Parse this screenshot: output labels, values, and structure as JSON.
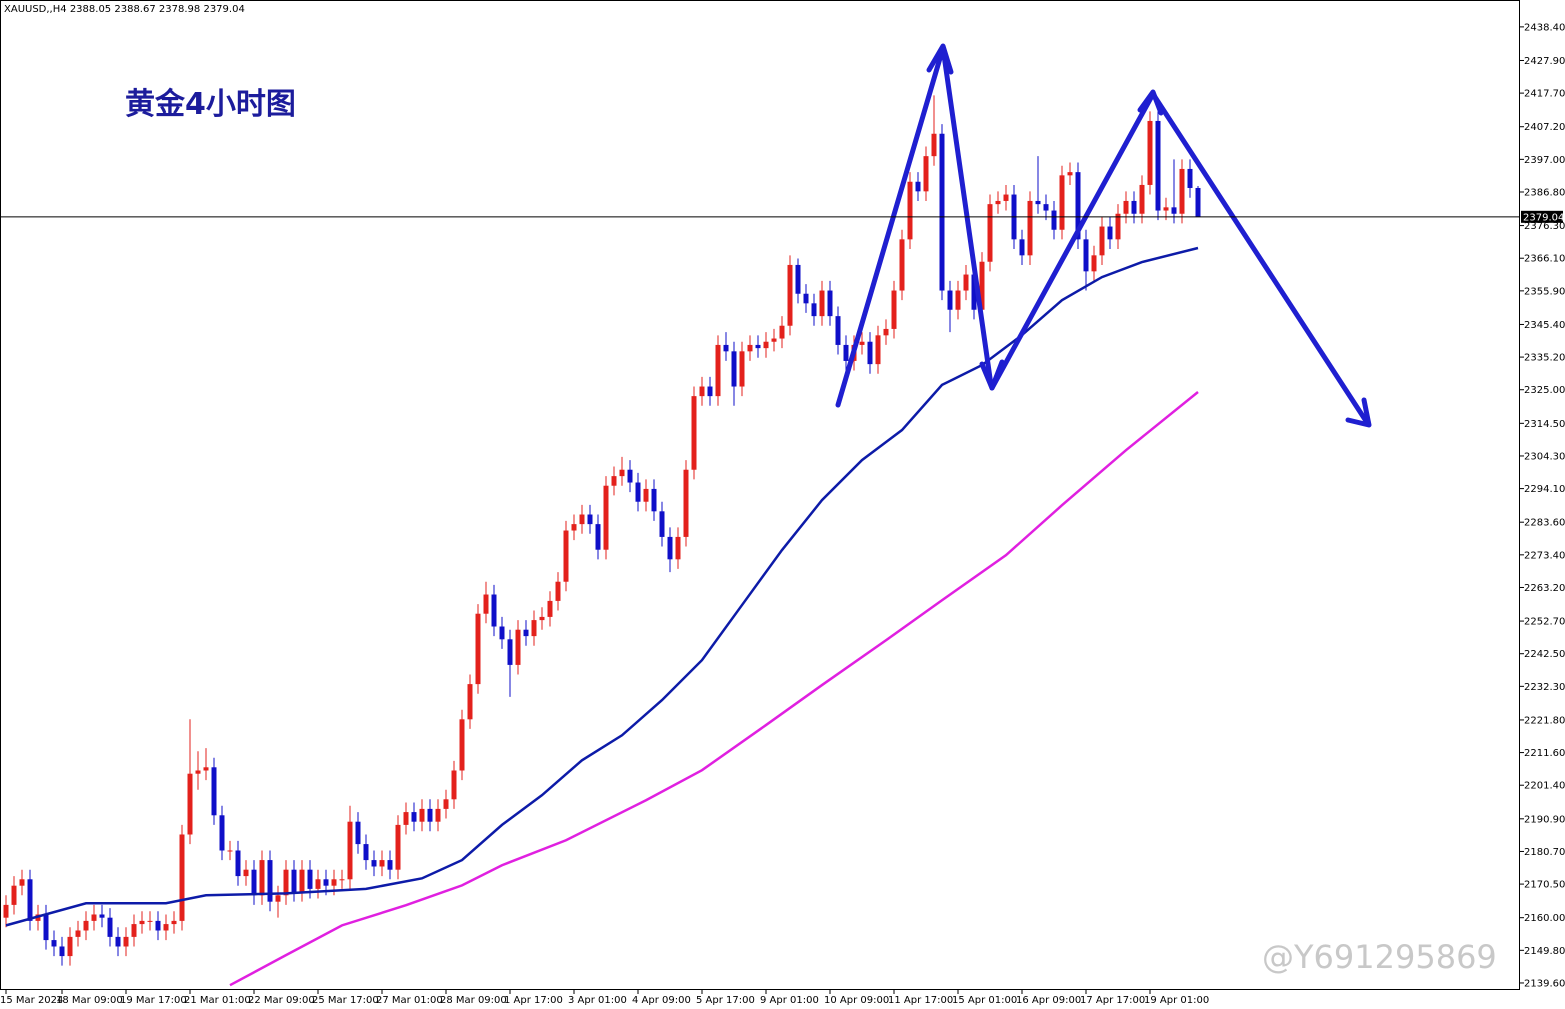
{
  "chart_data": {
    "type": "candlestick",
    "title": "黄金4小时图",
    "symbol": "XAUUSD,,H4",
    "watermark": "@Y691295869",
    "categories": [
      "15 Mar 2024",
      null,
      null,
      null,
      null,
      null,
      null,
      "18 Mar 09:00",
      null,
      null,
      null,
      null,
      null,
      null,
      null,
      "19 Mar 17:00",
      null,
      null,
      null,
      null,
      null,
      null,
      null,
      "21 Mar 01:00",
      null,
      null,
      null,
      null,
      null,
      null,
      null,
      "22 Mar 09:00",
      null,
      null,
      null,
      null,
      null,
      null,
      null,
      "25 Mar 17:00",
      null,
      null,
      null,
      null,
      null,
      null,
      null,
      "27 Mar 01:00",
      null,
      null,
      null,
      null,
      null,
      null,
      null,
      "28 Mar 09:00",
      null,
      null,
      null,
      null,
      null,
      null,
      null,
      "1 Apr 17:00",
      null,
      null,
      null,
      null,
      null,
      null,
      null,
      "3 Apr 01:00",
      null,
      null,
      null,
      null,
      null,
      null,
      null,
      "4 Apr 09:00",
      null,
      null,
      null,
      null,
      null,
      null,
      null,
      "5 Apr 17:00",
      null,
      null,
      null,
      null,
      null,
      null,
      null,
      "9 Apr 01:00",
      null,
      null,
      null,
      null,
      null,
      null,
      null,
      "10 Apr 09:00",
      null,
      null,
      null,
      null,
      null,
      null,
      null,
      "11 Apr 17:00",
      null,
      null,
      null,
      null,
      null,
      null,
      null,
      "15 Apr 01:00",
      null,
      null,
      null,
      null,
      null,
      null,
      null,
      "16 Apr 09:00",
      null,
      null,
      null,
      null,
      null,
      null,
      null,
      "17 Apr 17:00",
      null,
      null,
      null,
      null,
      null,
      null,
      null,
      "19 Apr 01:00",
      null,
      null,
      null,
      null,
      null,
      null
    ],
    "open": [
      2160,
      2164,
      2170,
      2172,
      2159,
      2161,
      2153,
      2151,
      2148,
      2154,
      2156,
      2159,
      2161,
      2160,
      2154,
      2151,
      2154,
      2158,
      2159,
      2159,
      2156,
      2158,
      2159,
      2186,
      2205,
      2206,
      2207,
      2192,
      2181,
      2181,
      2173,
      2175,
      2167,
      2178,
      2165,
      2167,
      2175,
      2168,
      2175,
      2169,
      2172,
      2170,
      2172,
      2172,
      2190,
      2183,
      2178,
      2176,
      2178,
      2175,
      2189,
      2193,
      2190,
      2194,
      2190,
      2194,
      2197,
      2206,
      2222,
      2233,
      2255,
      2261,
      2251,
      2247,
      2239,
      2250,
      2248,
      2253,
      2254,
      2259,
      2265,
      2281,
      2283,
      2286,
      2283,
      2275,
      2295,
      2298,
      2300,
      2296,
      2290,
      2294,
      2287,
      2279,
      2272,
      2279,
      2300,
      2323,
      2326,
      2323,
      2339,
      2337,
      2326,
      2337,
      2339,
      2338,
      2340,
      2341,
      2345,
      2364,
      2355,
      2352,
      2348,
      2356,
      2348,
      2339,
      2334,
      2339,
      2340,
      2333,
      2342,
      2344,
      2356,
      2372,
      2390,
      2387,
      2398,
      2405,
      2356,
      2350,
      2356,
      2361,
      2350,
      2365,
      2383,
      2384,
      2386,
      2372,
      2367,
      2384,
      2383,
      2381,
      2375,
      2392,
      2393,
      2372,
      2362,
      2367,
      2376,
      2372,
      2380,
      2384,
      2380,
      2389,
      2409,
      2381,
      2382,
      2380,
      2394,
      2388.05
    ],
    "high": [
      2167,
      2173,
      2175,
      2175,
      2164,
      2164,
      2156,
      2154,
      2157,
      2159,
      2162,
      2164,
      2164,
      2163,
      2157,
      2157,
      2161,
      2162,
      2162,
      2162,
      2161,
      2162,
      2189,
      2222,
      2212,
      2213,
      2210,
      2195,
      2184,
      2184,
      2178,
      2178,
      2181,
      2181,
      2170,
      2178,
      2178,
      2178,
      2178,
      2175,
      2175,
      2175,
      2175,
      2195,
      2193,
      2186,
      2181,
      2181,
      2181,
      2192,
      2196,
      2196,
      2197,
      2197,
      2197,
      2200,
      2209,
      2225,
      2236,
      2258,
      2265,
      2264,
      2254,
      2250,
      2253,
      2253,
      2256,
      2257,
      2262,
      2268,
      2284,
      2286,
      2289,
      2289,
      2286,
      2298,
      2301,
      2304,
      2303,
      2299,
      2297,
      2297,
      2290,
      2282,
      2282,
      2303,
      2326,
      2329,
      2329,
      2342,
      2343,
      2340,
      2340,
      2342,
      2342,
      2343,
      2344,
      2348,
      2367,
      2366,
      2358,
      2355,
      2359,
      2359,
      2351,
      2342,
      2342,
      2343,
      2343,
      2345,
      2347,
      2359,
      2375,
      2393,
      2393,
      2401,
      2417,
      2408,
      2359,
      2359,
      2364,
      2364,
      2368,
      2386,
      2387,
      2389,
      2389,
      2375,
      2387,
      2398,
      2386,
      2384,
      2395,
      2396,
      2396,
      2375,
      2370,
      2379,
      2379,
      2383,
      2387,
      2387,
      2392,
      2412,
      2412,
      2385,
      2397,
      2397,
      2397,
      2388.67
    ],
    "low": [
      2157,
      2161,
      2167,
      2156,
      2156,
      2150,
      2148,
      2145,
      2145,
      2151,
      2153,
      2156,
      2157,
      2151,
      2148,
      2148,
      2151,
      2155,
      2156,
      2153,
      2153,
      2155,
      2156,
      2183,
      2200,
      2203,
      2189,
      2178,
      2178,
      2170,
      2170,
      2164,
      2164,
      2162,
      2160,
      2164,
      2165,
      2165,
      2166,
      2166,
      2167,
      2167,
      2169,
      2169,
      2180,
      2175,
      2173,
      2173,
      2172,
      2172,
      2186,
      2187,
      2187,
      2187,
      2187,
      2191,
      2194,
      2203,
      2219,
      2230,
      2252,
      2248,
      2244,
      2229,
      2236,
      2245,
      2245,
      2250,
      2251,
      2256,
      2262,
      2278,
      2280,
      2280,
      2272,
      2272,
      2292,
      2295,
      2293,
      2287,
      2287,
      2284,
      2276,
      2268,
      2269,
      2276,
      2297,
      2320,
      2320,
      2320,
      2334,
      2320,
      2323,
      2334,
      2335,
      2335,
      2337,
      2338,
      2342,
      2352,
      2349,
      2345,
      2345,
      2345,
      2336,
      2331,
      2331,
      2336,
      2330,
      2330,
      2339,
      2341,
      2353,
      2369,
      2384,
      2384,
      2395,
      2353,
      2343,
      2347,
      2353,
      2347,
      2347,
      2362,
      2380,
      2381,
      2369,
      2364,
      2364,
      2380,
      2378,
      2372,
      2372,
      2389,
      2369,
      2356,
      2359,
      2364,
      2369,
      2369,
      2377,
      2377,
      2377,
      2386,
      2378,
      2378,
      2377,
      2377,
      2385,
      2378.98
    ],
    "close": [
      2164,
      2170,
      2172,
      2159,
      2161,
      2153,
      2151,
      2148,
      2154,
      2156,
      2159,
      2161,
      2160,
      2154,
      2151,
      2154,
      2158,
      2159,
      2159,
      2156,
      2158,
      2159,
      2186,
      2205,
      2206,
      2207,
      2192,
      2181,
      2181,
      2173,
      2175,
      2167,
      2178,
      2165,
      2167,
      2175,
      2168,
      2175,
      2169,
      2172,
      2170,
      2172,
      2172,
      2190,
      2183,
      2178,
      2176,
      2178,
      2175,
      2189,
      2193,
      2190,
      2194,
      2190,
      2194,
      2197,
      2206,
      2222,
      2233,
      2255,
      2261,
      2251,
      2247,
      2239,
      2250,
      2248,
      2253,
      2254,
      2259,
      2265,
      2281,
      2283,
      2286,
      2283,
      2275,
      2295,
      2298,
      2300,
      2296,
      2290,
      2294,
      2287,
      2279,
      2272,
      2279,
      2300,
      2323,
      2326,
      2323,
      2339,
      2337,
      2326,
      2337,
      2339,
      2338,
      2340,
      2341,
      2345,
      2364,
      2355,
      2352,
      2348,
      2356,
      2348,
      2339,
      2334,
      2339,
      2340,
      2333,
      2342,
      2344,
      2356,
      2372,
      2390,
      2387,
      2398,
      2405,
      2356,
      2350,
      2356,
      2361,
      2350,
      2365,
      2383,
      2384,
      2386,
      2372,
      2367,
      2384,
      2383,
      2381,
      2375,
      2392,
      2393,
      2372,
      2362,
      2367,
      2376,
      2372,
      2380,
      2384,
      2380,
      2389,
      2409,
      2381,
      2382,
      2380,
      2394,
      2388.05,
      2379.04
    ],
    "up_color": "#e3211c",
    "down_color": "#0f0fc8",
    "series": [
      {
        "color": "#0d1ba8",
        "x": [
          0,
          10,
          20,
          25,
          35,
          45,
          52,
          57,
          62,
          67,
          72,
          77,
          82,
          87,
          92,
          97,
          102,
          107,
          112,
          117,
          122,
          127,
          132,
          137,
          142,
          149
        ],
        "values": [
          2157.6,
          2164.5,
          2164.5,
          2167,
          2167.6,
          2169,
          2172.3,
          2178,
          2189,
          2198.3,
          2209.2,
          2217,
          2228,
          2240.5,
          2257.7,
          2274.9,
          2290.5,
          2303,
          2312.4,
          2326.5,
          2332.7,
          2342.1,
          2353,
          2360.2,
          2364.9,
          2369.3
        ]
      },
      {
        "color": "#e020e0",
        "x": [
          28,
          35,
          42,
          50,
          57,
          62,
          70,
          80,
          87,
          95,
          102,
          110,
          117,
          125,
          132,
          140,
          149
        ],
        "values": [
          2138.9,
          2148.3,
          2157.6,
          2163.9,
          2170.1,
          2176.4,
          2184.2,
          2196.7,
          2206.1,
          2220.2,
          2232.7,
          2246.7,
          2259.2,
          2273.3,
          2288.9,
          2306.1,
          2324.3
        ]
      }
    ],
    "ylim": [
      2137.4,
      2446.8
    ],
    "yticks": [
      {
        "value": 2438.4,
        "label": "2438.40"
      },
      {
        "value": 2427.9,
        "label": "2427.90"
      },
      {
        "value": 2417.7,
        "label": "2417.70"
      },
      {
        "value": 2407.2,
        "label": "2407.20"
      },
      {
        "value": 2397,
        "label": "2397.00"
      },
      {
        "value": 2386.8,
        "label": "2386.80"
      },
      {
        "value": 2376.3,
        "label": "2376.30"
      },
      {
        "value": 2366.1,
        "label": "2366.10"
      },
      {
        "value": 2355.9,
        "label": "2355.90"
      },
      {
        "value": 2345.4,
        "label": "2345.40"
      },
      {
        "value": 2335.2,
        "label": "2335.20"
      },
      {
        "value": 2325,
        "label": "2325.00"
      },
      {
        "value": 2314.5,
        "label": "2314.50"
      },
      {
        "value": 2304.3,
        "label": "2304.30"
      },
      {
        "value": 2294.1,
        "label": "2294.10"
      },
      {
        "value": 2283.6,
        "label": "2283.60"
      },
      {
        "value": 2273.4,
        "label": "2273.40"
      },
      {
        "value": 2263.2,
        "label": "2263.20"
      },
      {
        "value": 2252.7,
        "label": "2252.70"
      },
      {
        "value": 2242.5,
        "label": "2242.50"
      },
      {
        "value": 2232.3,
        "label": "2232.30"
      },
      {
        "value": 2221.8,
        "label": "2221.80"
      },
      {
        "value": 2211.6,
        "label": "2211.60"
      },
      {
        "value": 2201.4,
        "label": "2201.40"
      },
      {
        "value": 2190.9,
        "label": "2190.90"
      },
      {
        "value": 2180.7,
        "label": "2180.70"
      },
      {
        "value": 2170.5,
        "label": "2170.50"
      },
      {
        "value": 2160,
        "label": "2160.00"
      },
      {
        "value": 2149.8,
        "label": "2149.80"
      },
      {
        "value": 2139.6,
        "label": "2139.60"
      }
    ],
    "price_line": true
  }
}
